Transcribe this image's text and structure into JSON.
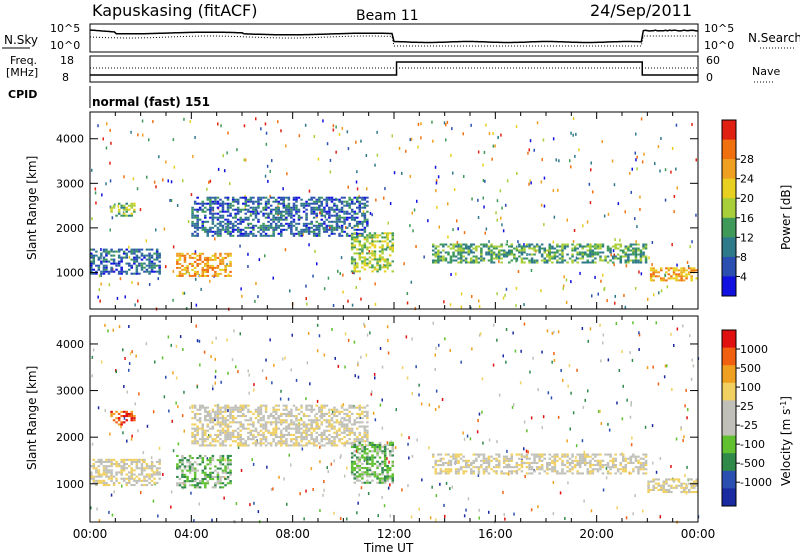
{
  "header": {
    "station": "Kapuskasing (fitACF)",
    "beam": "Beam 11",
    "date": "24/Sep/2011"
  },
  "panels": {
    "noise": {
      "left_label": "N.Sky",
      "right_label": "N.Search",
      "ticks_left": [
        "10^5",
        "10^0"
      ],
      "ticks_right": [
        "10^5",
        "10^0"
      ]
    },
    "freq": {
      "left_label_1": "Freq.",
      "left_label_2": "[MHz]",
      "right_label": "Nave",
      "ticks_left": [
        "18",
        "8"
      ],
      "ticks_right": [
        "60",
        "0"
      ]
    },
    "cpid": {
      "left_label": "CPID",
      "value": "normal (fast) 151"
    }
  },
  "colors": {
    "power": [
      "#1010e0",
      "#2a4fb0",
      "#2f7a8a",
      "#3f9a5a",
      "#a8cf3a",
      "#e8d020",
      "#f0a020",
      "#f07010",
      "#e02010"
    ],
    "velocity": [
      "#e01010",
      "#f06010",
      "#f0a020",
      "#f0d060",
      "#c0c0b8",
      "#c0c0b8",
      "#60c030",
      "#2f8a4a",
      "#2a4fb0",
      "#1a2aa0"
    ]
  },
  "chart_data": [
    {
      "type": "heatmap",
      "title": "Power",
      "ylabel": "Slant Range [km]",
      "xlabel": "Time UT",
      "x_ticks": [
        "00:00",
        "04:00",
        "08:00",
        "12:00",
        "16:00",
        "20:00",
        "00:00"
      ],
      "y_ticks": [
        1000,
        2000,
        3000,
        4000
      ],
      "ylim": [
        180,
        4600
      ],
      "xlim_hours": [
        0,
        24
      ],
      "colorbar": {
        "label": "Power [dB]",
        "ticks": [
          "4",
          "8",
          "12",
          "16",
          "20",
          "24",
          "28"
        ]
      },
      "features": [
        {
          "t0": 0.0,
          "t1": 2.8,
          "r0": 950,
          "r1": 1500,
          "level": 1.5
        },
        {
          "t0": 0.8,
          "t1": 1.8,
          "r0": 2250,
          "r1": 2550,
          "level": 3.5
        },
        {
          "t0": 3.4,
          "t1": 5.6,
          "r0": 900,
          "r1": 1400,
          "level": 6
        },
        {
          "t0": 4.0,
          "t1": 11.0,
          "r0": 1800,
          "r1": 2700,
          "level": 1.5
        },
        {
          "t0": 10.3,
          "t1": 12.0,
          "r0": 1000,
          "r1": 1900,
          "level": 4
        },
        {
          "t0": 13.5,
          "t1": 22.0,
          "r0": 1200,
          "r1": 1650,
          "level": 3
        },
        {
          "t0": 22.0,
          "t1": 24.0,
          "r0": 800,
          "r1": 1100,
          "level": 6
        }
      ]
    },
    {
      "type": "heatmap",
      "title": "Velocity",
      "ylabel": "Slant Range [km]",
      "xlabel": "Time UT",
      "x_ticks": [
        "00:00",
        "04:00",
        "08:00",
        "12:00",
        "16:00",
        "20:00",
        "00:00"
      ],
      "y_ticks": [
        1000,
        2000,
        3000,
        4000
      ],
      "ylim": [
        180,
        4600
      ],
      "xlim_hours": [
        0,
        24
      ],
      "colorbar": {
        "label": "Velocity [m s^-1]",
        "ticks": [
          "1000",
          "500",
          "100",
          "25",
          "-25",
          "-100",
          "-500",
          "-1000"
        ]
      },
      "features": [
        {
          "t0": 0.0,
          "t1": 2.8,
          "r0": 950,
          "r1": 1500,
          "level": 4
        },
        {
          "t0": 0.8,
          "t1": 1.8,
          "r0": 2250,
          "r1": 2550,
          "level": 1
        },
        {
          "t0": 3.4,
          "t1": 5.6,
          "r0": 900,
          "r1": 1600,
          "level": 6
        },
        {
          "t0": 4.0,
          "t1": 11.0,
          "r0": 1800,
          "r1": 2700,
          "level": 4
        },
        {
          "t0": 10.3,
          "t1": 12.0,
          "r0": 1000,
          "r1": 1900,
          "level": 6
        },
        {
          "t0": 13.5,
          "t1": 22.0,
          "r0": 1200,
          "r1": 1650,
          "level": 4
        },
        {
          "t0": 22.0,
          "t1": 24.0,
          "r0": 800,
          "r1": 1100,
          "level": 4
        }
      ]
    }
  ]
}
